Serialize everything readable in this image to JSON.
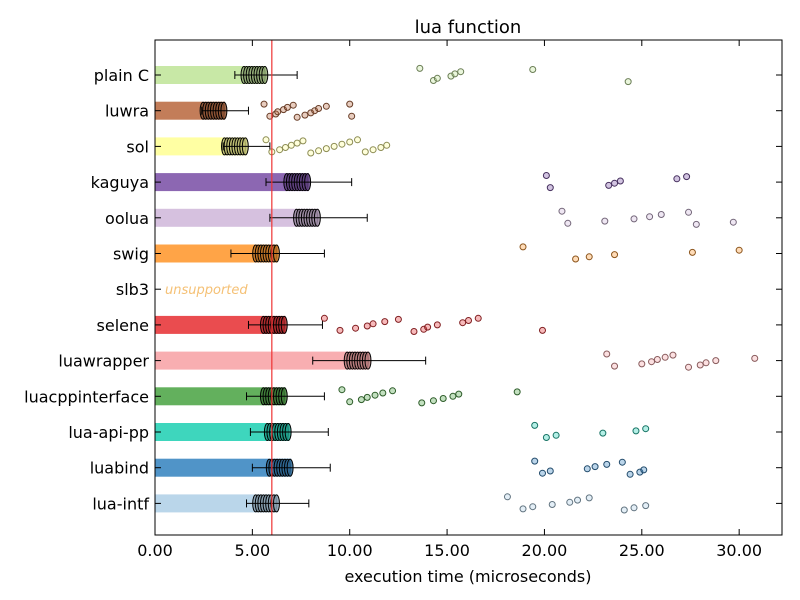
{
  "chart_data": {
    "type": "bar",
    "orientation": "horizontal",
    "title": "lua function",
    "xlabel": "execution time (microseconds)",
    "ylabel": "",
    "xlim": [
      0,
      32.2
    ],
    "xticks": [
      "0.00",
      "5.00",
      "10.00",
      "15.00",
      "20.00",
      "25.00",
      "30.00"
    ],
    "xtick_values": [
      0,
      5,
      10,
      15,
      20,
      25,
      30
    ],
    "reference_line": 6.0,
    "reference_line_color": "#ee3333",
    "grid": false,
    "categories": [
      "plain C",
      "luwra",
      "sol",
      "kaguya",
      "oolua",
      "swig",
      "slb3",
      "selene",
      "luawrapper",
      "luacppinterface",
      "lua-api-pp",
      "luabind",
      "lua-intf"
    ],
    "series": [
      {
        "values": [
          5.7,
          3.6,
          4.7,
          7.9,
          8.4,
          6.3,
          null,
          6.7,
          11.0,
          6.7,
          6.9,
          7.0,
          6.3
        ],
        "errors": [
          1.6,
          1.2,
          1.2,
          2.2,
          2.5,
          2.4,
          null,
          1.9,
          2.9,
          2.0,
          2.0,
          2.0,
          1.6
        ],
        "colors": [
          "#c2e59c",
          "#bd6f47",
          "#ffff99",
          "#7f57aa",
          "#d1badc",
          "#ff9a33",
          "#cccccc",
          "#e8383c",
          "#f7a5a8",
          "#52a74b",
          "#29d1b6",
          "#3d88c2",
          "#b2d2e8"
        ]
      }
    ],
    "annotations": [
      {
        "category": "slb3",
        "text": "unsupported",
        "color": "#f5c176"
      }
    ],
    "scatter_outliers": {
      "plain C": [
        13.6,
        14.3,
        14.5,
        15.2,
        15.4,
        15.7,
        19.4,
        24.3
      ],
      "luwra": [
        5.6,
        5.9,
        6.2,
        6.3,
        6.6,
        6.8,
        7.1,
        7.3,
        7.7,
        8.0,
        8.2,
        8.4,
        8.8,
        10.0,
        10.1
      ],
      "sol": [
        5.7,
        6.0,
        6.4,
        6.7,
        7.0,
        7.3,
        7.6,
        8.0,
        8.4,
        8.8,
        9.2,
        9.6,
        10.0,
        10.4,
        10.8,
        11.2,
        11.6,
        11.9
      ],
      "kaguya": [
        20.1,
        20.3,
        23.3,
        23.6,
        23.9,
        26.8,
        27.3
      ],
      "oolua": [
        20.9,
        21.2,
        23.1,
        24.6,
        25.4,
        26.0,
        27.4,
        27.8,
        29.7
      ],
      "swig": [
        18.9,
        21.6,
        22.3,
        23.6,
        27.6,
        30.0
      ],
      "selene": [
        8.7,
        9.5,
        10.3,
        10.9,
        11.2,
        11.8,
        12.5,
        13.3,
        13.8,
        14.0,
        14.5,
        15.8,
        16.1,
        16.6,
        19.9
      ],
      "luawrapper": [
        23.2,
        23.6,
        25.0,
        25.5,
        25.8,
        26.2,
        26.6,
        27.4,
        28.0,
        28.3,
        28.8,
        30.8
      ],
      "luacppinterface": [
        9.6,
        10.0,
        10.6,
        10.9,
        11.3,
        11.7,
        12.2,
        13.7,
        14.3,
        14.8,
        15.3,
        15.6,
        18.6
      ],
      "lua-api-pp": [
        19.5,
        20.1,
        20.6,
        23.0,
        24.7,
        25.2
      ],
      "luabind": [
        19.5,
        19.9,
        20.3,
        22.2,
        22.6,
        23.2,
        24.0,
        24.4,
        24.9,
        25.1
      ],
      "lua-intf": [
        18.1,
        18.9,
        19.4,
        20.4,
        21.3,
        21.7,
        22.3,
        24.1,
        24.6,
        25.2
      ]
    }
  }
}
